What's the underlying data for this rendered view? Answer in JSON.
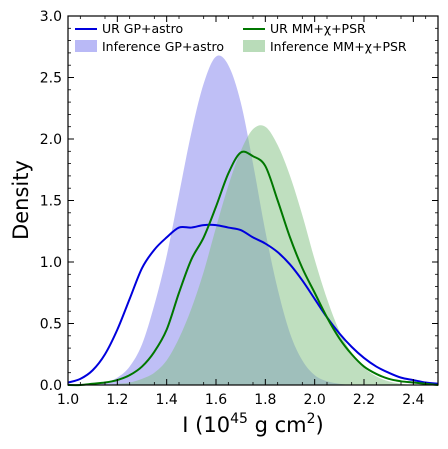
{
  "chart_data": {
    "type": "area",
    "xlabel": "I (10",
    "xlabel_exp": "45",
    "xlabel_mid": " g cm",
    "xlabel_exp2": "2",
    "xlabel_end": ")",
    "ylabel": "Density",
    "xlim": [
      1.0,
      2.5
    ],
    "ylim": [
      0.0,
      3.0
    ],
    "xticks": [
      "1.0",
      "1.2",
      "1.4",
      "1.6",
      "1.8",
      "2.0",
      "2.2",
      "2.4"
    ],
    "xtick_values": [
      1.0,
      1.2,
      1.4,
      1.6,
      1.8,
      2.0,
      2.2,
      2.4
    ],
    "yticks": [
      "0.0",
      "0.5",
      "1.0",
      "1.5",
      "2.0",
      "2.5",
      "3.0"
    ],
    "ytick_values": [
      0.0,
      0.5,
      1.0,
      1.5,
      2.0,
      2.5,
      3.0
    ],
    "legend_position": "top",
    "series": [
      {
        "name": "UR GP+astro",
        "kind": "line",
        "color": "#0000dd",
        "x": [
          1.0,
          1.05,
          1.1,
          1.15,
          1.2,
          1.25,
          1.3,
          1.35,
          1.4,
          1.45,
          1.5,
          1.55,
          1.6,
          1.65,
          1.7,
          1.75,
          1.8,
          1.85,
          1.9,
          1.95,
          2.0,
          2.05,
          2.1,
          2.15,
          2.2,
          2.25,
          2.3,
          2.35,
          2.4,
          2.45,
          2.5
        ],
        "y": [
          0.02,
          0.05,
          0.12,
          0.25,
          0.45,
          0.7,
          0.95,
          1.1,
          1.2,
          1.28,
          1.28,
          1.3,
          1.3,
          1.28,
          1.26,
          1.2,
          1.15,
          1.08,
          0.98,
          0.85,
          0.7,
          0.55,
          0.42,
          0.31,
          0.22,
          0.15,
          0.1,
          0.06,
          0.04,
          0.02,
          0.01
        ]
      },
      {
        "name": "Inference GP+astro",
        "kind": "area",
        "color": "#8080ee",
        "x": [
          1.0,
          1.05,
          1.1,
          1.15,
          1.2,
          1.25,
          1.3,
          1.35,
          1.4,
          1.45,
          1.5,
          1.55,
          1.6,
          1.65,
          1.7,
          1.75,
          1.8,
          1.85,
          1.9,
          1.95,
          2.0,
          2.05,
          2.1,
          2.15,
          2.2,
          2.25,
          2.3,
          2.35,
          2.4,
          2.45,
          2.5
        ],
        "y": [
          0.0,
          0.0,
          0.01,
          0.02,
          0.06,
          0.15,
          0.33,
          0.65,
          1.05,
          1.55,
          2.05,
          2.45,
          2.67,
          2.6,
          2.3,
          1.8,
          1.25,
          0.78,
          0.42,
          0.2,
          0.08,
          0.03,
          0.01,
          0.0,
          0.0,
          0.0,
          0.0,
          0.0,
          0.0,
          0.0,
          0.0
        ]
      },
      {
        "name": "UR MM+χ+PSR",
        "kind": "line",
        "color": "#007700",
        "x": [
          1.0,
          1.05,
          1.1,
          1.15,
          1.2,
          1.25,
          1.3,
          1.35,
          1.4,
          1.45,
          1.5,
          1.55,
          1.6,
          1.65,
          1.7,
          1.75,
          1.8,
          1.85,
          1.9,
          1.95,
          2.0,
          2.05,
          2.1,
          2.15,
          2.2,
          2.25,
          2.3,
          2.35,
          2.4,
          2.45,
          2.5
        ],
        "y": [
          0.0,
          0.0,
          0.01,
          0.02,
          0.04,
          0.08,
          0.15,
          0.27,
          0.45,
          0.75,
          1.02,
          1.2,
          1.45,
          1.72,
          1.89,
          1.86,
          1.78,
          1.5,
          1.2,
          0.95,
          0.75,
          0.55,
          0.38,
          0.25,
          0.15,
          0.09,
          0.05,
          0.03,
          0.02,
          0.01,
          0.0
        ]
      },
      {
        "name": "Inference MM+χ+PSR",
        "kind": "area",
        "color": "#80c080",
        "x": [
          1.0,
          1.05,
          1.1,
          1.15,
          1.2,
          1.25,
          1.3,
          1.35,
          1.4,
          1.45,
          1.5,
          1.55,
          1.6,
          1.65,
          1.7,
          1.75,
          1.8,
          1.85,
          1.9,
          1.95,
          2.0,
          2.05,
          2.1,
          2.15,
          2.2,
          2.25,
          2.3,
          2.35,
          2.4,
          2.45,
          2.5
        ],
        "y": [
          0.0,
          0.0,
          0.0,
          0.0,
          0.01,
          0.02,
          0.05,
          0.1,
          0.2,
          0.38,
          0.62,
          0.92,
          1.28,
          1.62,
          1.9,
          2.08,
          2.1,
          1.95,
          1.7,
          1.38,
          1.02,
          0.7,
          0.44,
          0.26,
          0.14,
          0.07,
          0.03,
          0.01,
          0.0,
          0.0,
          0.0
        ]
      }
    ]
  }
}
